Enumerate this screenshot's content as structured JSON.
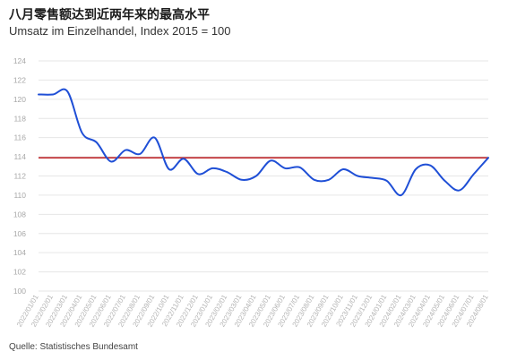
{
  "header": {
    "title": "八月零售额达到近两年来的最高水平",
    "subtitle": "Umsatz im Einzelhandel, Index 2015 = 100"
  },
  "footer": {
    "source": "Quelle: Statistisches Bundesamt"
  },
  "colors": {
    "series_line": "#1f4fd6",
    "reference_line": "#c0282d",
    "grid": "#e6e6e6"
  },
  "chart_data": {
    "type": "line",
    "xlabel": "",
    "ylabel": "",
    "ylim": [
      100,
      124
    ],
    "yticks": [
      100,
      102,
      104,
      106,
      108,
      110,
      112,
      114,
      116,
      118,
      120,
      122,
      124
    ],
    "grid": "horizontal",
    "categories": [
      "2022/01/01",
      "2022/02/01",
      "2022/03/01",
      "2022/04/01",
      "2022/05/01",
      "2022/06/01",
      "2022/07/01",
      "2022/08/01",
      "2022/09/01",
      "2022/10/01",
      "2022/11/01",
      "2022/12/01",
      "2023/01/01",
      "2023/02/01",
      "2023/03/01",
      "2023/04/01",
      "2023/05/01",
      "2023/06/01",
      "2023/07/01",
      "2023/08/01",
      "2023/09/01",
      "2023/10/01",
      "2023/11/01",
      "2023/12/01",
      "2024/01/01",
      "2024/02/01",
      "2024/03/01",
      "2024/04/01",
      "2024/05/01",
      "2024/06/01",
      "2024/07/01",
      "2024/08/01"
    ],
    "series": [
      {
        "values": [
          120.5,
          120.5,
          120.8,
          116.5,
          115.5,
          113.5,
          114.7,
          114.3,
          116.0,
          112.7,
          113.8,
          112.2,
          112.8,
          112.4,
          111.6,
          112.0,
          113.6,
          112.8,
          112.9,
          111.6,
          111.6,
          112.7,
          112.0,
          111.8,
          111.5,
          110.0,
          112.7,
          113.1,
          111.5,
          110.5,
          112.2,
          113.9
        ]
      }
    ],
    "reference_line": {
      "value": 113.9
    }
  }
}
